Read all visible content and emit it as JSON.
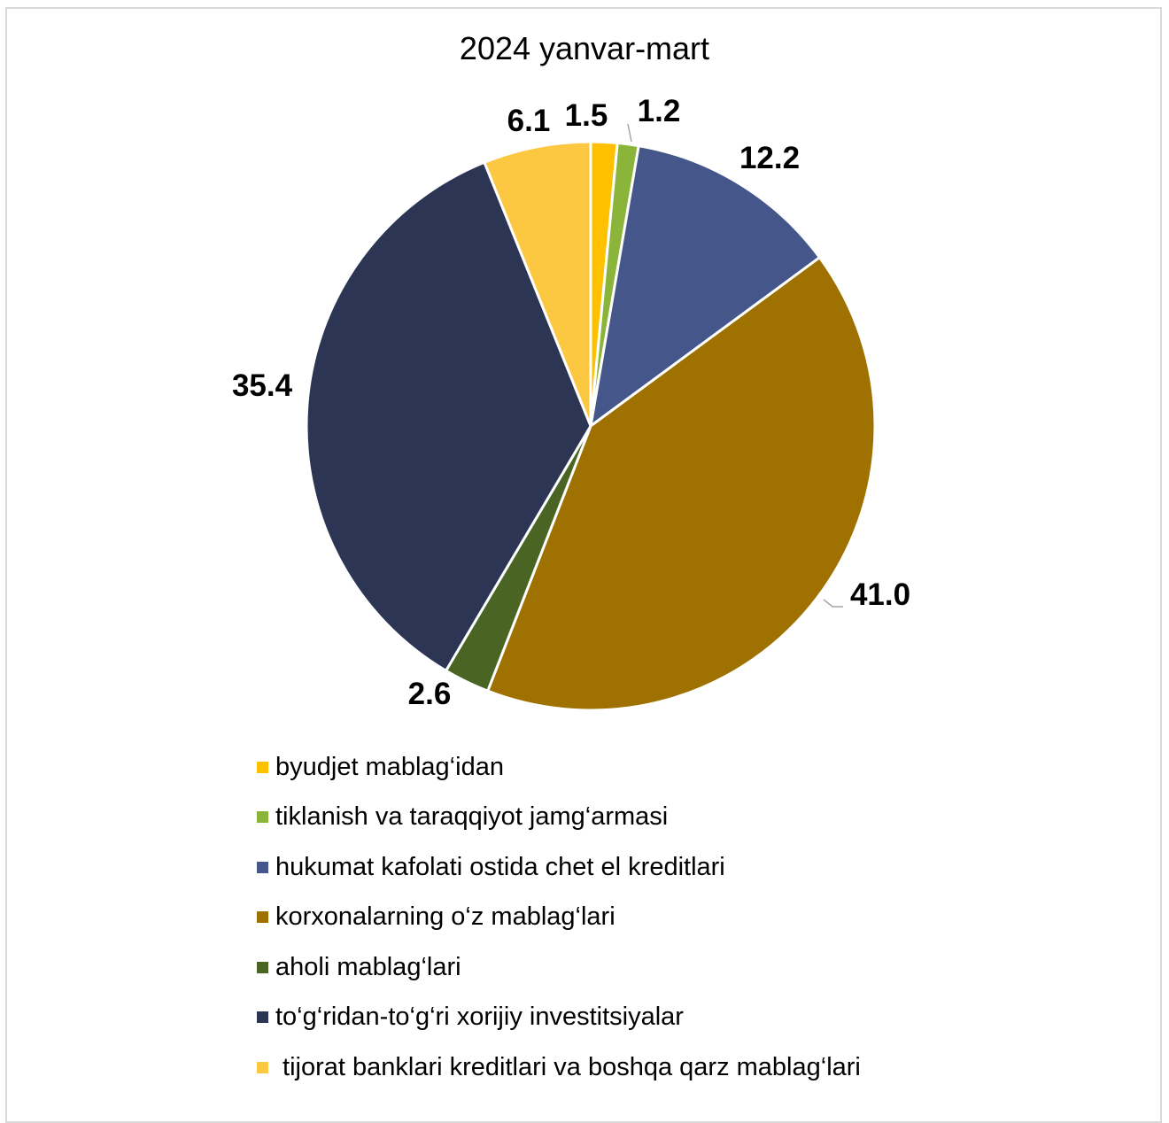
{
  "chart_data": {
    "type": "pie",
    "title": "2024 yanvar-mart",
    "series": [
      {
        "name": "byudjet mablag‘idan",
        "value": 1.5,
        "label": "1.5",
        "color": "#ffc000"
      },
      {
        "name": "tiklanish va taraqqiyot jamg‘armasi",
        "value": 1.2,
        "label": "1.2",
        "color": "#8bb53a"
      },
      {
        "name": "hukumat kafolati ostida chet el kreditlari",
        "value": 12.2,
        "label": "12.2",
        "color": "#44568a"
      },
      {
        "name": "korxonalarning o‘z mablag‘lari",
        "value": 41.0,
        "label": "41.0",
        "color": "#9e7100"
      },
      {
        "name": "aholi mablag‘lari",
        "value": 2.6,
        "label": "2.6",
        "color": "#4a6424"
      },
      {
        "name": "to‘g‘ridan-to‘g‘ri xorijiy investitsiyalar",
        "value": 35.4,
        "label": "35.4",
        "color": "#2c3654"
      },
      {
        "name": " tijorat banklari kreditlari va boshqa qarz mablag‘lari",
        "value": 6.1,
        "label": "6.1",
        "color": "#fcc741"
      }
    ],
    "legend_position": "bottom",
    "start_angle": "12 o'clock, clockwise"
  }
}
